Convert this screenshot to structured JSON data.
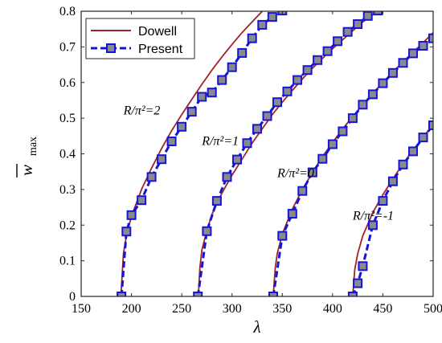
{
  "chart_data": {
    "type": "line",
    "title": "",
    "xlabel": "λ",
    "ylabel_main": "w",
    "ylabel_sub": "max",
    "xlim": [
      150,
      500
    ],
    "ylim": [
      0,
      0.8
    ],
    "xticks": [
      150,
      200,
      250,
      300,
      350,
      400,
      450,
      500
    ],
    "yticks": [
      0,
      0.1,
      0.2,
      0.3,
      0.4,
      0.5,
      0.6,
      0.7,
      0.8
    ],
    "grid": false,
    "legend_position": "top-left",
    "legend": [
      {
        "name": "Dowell",
        "color": "#a0232a",
        "style": "solid"
      },
      {
        "name": "Present",
        "color": "#1515d8",
        "style": "dashed-square-markers"
      }
    ],
    "annotations": [
      {
        "text": "R/π²=2",
        "x": 192,
        "y": 0.51
      },
      {
        "text": "R/π²=1",
        "x": 270,
        "y": 0.425
      },
      {
        "text": "R/π²=0",
        "x": 345,
        "y": 0.335
      },
      {
        "text": "R/π²=-1",
        "x": 420,
        "y": 0.215
      }
    ],
    "series": [
      {
        "group": "R/π²=2",
        "dowell": {
          "x": [
            189.5,
            192,
            195,
            200,
            210,
            220,
            230,
            240,
            250,
            260,
            270,
            280,
            290,
            300,
            310,
            320,
            330,
            340,
            350,
            354
          ],
          "y": [
            0,
            0.12,
            0.17,
            0.225,
            0.3,
            0.36,
            0.415,
            0.465,
            0.51,
            0.553,
            0.595,
            0.635,
            0.672,
            0.707,
            0.74,
            0.77,
            0.8,
            0.83,
            0.85,
            0.8
          ]
        },
        "present": {
          "x": [
            190,
            195,
            200,
            210,
            220,
            230,
            240,
            250,
            260,
            270,
            280,
            290,
            300,
            310,
            320,
            330,
            340,
            350
          ],
          "y": [
            0,
            0.182,
            0.228,
            0.27,
            0.335,
            0.385,
            0.435,
            0.476,
            0.518,
            0.56,
            0.572,
            0.607,
            0.643,
            0.683,
            0.724,
            0.762,
            0.784,
            0.802
          ]
        }
      },
      {
        "group": "R/π²=1",
        "dowell": {
          "x": [
            266.5,
            268,
            270,
            275,
            280,
            290,
            300,
            310,
            320,
            330,
            340,
            350,
            360,
            370,
            380,
            390,
            400,
            410,
            420,
            430,
            440,
            450
          ],
          "y": [
            0,
            0.08,
            0.13,
            0.185,
            0.23,
            0.29,
            0.34,
            0.385,
            0.43,
            0.47,
            0.51,
            0.545,
            0.578,
            0.61,
            0.64,
            0.668,
            0.695,
            0.72,
            0.745,
            0.77,
            0.79,
            0.81
          ]
        },
        "present": {
          "x": [
            266,
            275,
            285,
            295,
            305,
            315,
            325,
            335,
            345,
            355,
            365,
            375,
            385,
            395,
            405,
            415,
            425,
            435,
            445
          ],
          "y": [
            0,
            0.183,
            0.268,
            0.335,
            0.384,
            0.43,
            0.47,
            0.506,
            0.545,
            0.575,
            0.607,
            0.635,
            0.663,
            0.688,
            0.716,
            0.742,
            0.764,
            0.787,
            0.802
          ]
        }
      },
      {
        "group": "R/π²=0",
        "dowell": {
          "x": [
            341,
            343,
            345,
            350,
            360,
            370,
            380,
            390,
            400,
            410,
            420,
            430,
            440,
            450,
            460,
            470,
            480,
            490,
            500
          ],
          "y": [
            0,
            0.08,
            0.12,
            0.175,
            0.245,
            0.3,
            0.348,
            0.392,
            0.432,
            0.47,
            0.505,
            0.538,
            0.57,
            0.6,
            0.63,
            0.658,
            0.685,
            0.712,
            0.74
          ]
        },
        "present": {
          "x": [
            341,
            350,
            360,
            370,
            380,
            390,
            400,
            410,
            420,
            430,
            440,
            450,
            460,
            470,
            480,
            490,
            500
          ],
          "y": [
            0,
            0.17,
            0.232,
            0.296,
            0.348,
            0.386,
            0.427,
            0.463,
            0.5,
            0.538,
            0.567,
            0.598,
            0.627,
            0.655,
            0.682,
            0.703,
            0.724
          ]
        }
      },
      {
        "group": "R/π²=-1",
        "dowell": {
          "x": [
            420,
            422,
            425,
            430,
            440,
            450,
            460,
            470,
            480,
            490,
            500
          ],
          "y": [
            0,
            0.075,
            0.12,
            0.17,
            0.235,
            0.285,
            0.33,
            0.372,
            0.41,
            0.447,
            0.482
          ]
        },
        "present": {
          "x": [
            420,
            425,
            430,
            440,
            450,
            460,
            470,
            480,
            490,
            500
          ],
          "y": [
            0,
            0.037,
            0.085,
            0.2,
            0.268,
            0.323,
            0.37,
            0.407,
            0.446,
            0.48
          ]
        }
      }
    ]
  }
}
